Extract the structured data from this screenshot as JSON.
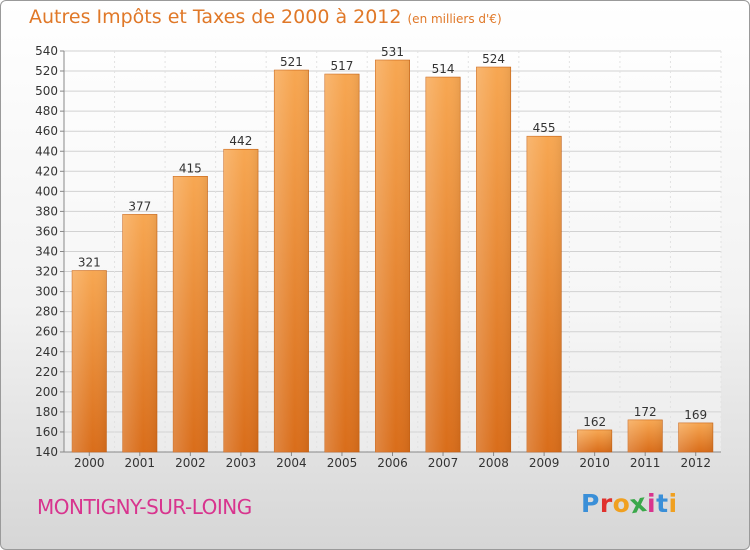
{
  "chart_data": {
    "type": "bar",
    "title": "Autres Impôts et Taxes de 2000 à 2012",
    "subtitle": "(en milliers d'€)",
    "categories": [
      "2000",
      "2001",
      "2002",
      "2003",
      "2004",
      "2005",
      "2006",
      "2007",
      "2008",
      "2009",
      "2010",
      "2011",
      "2012"
    ],
    "values": [
      321,
      377,
      415,
      442,
      521,
      517,
      531,
      514,
      524,
      455,
      162,
      172,
      169
    ],
    "ylim": [
      140,
      540
    ],
    "yticks": [
      140,
      160,
      180,
      200,
      220,
      240,
      260,
      280,
      300,
      320,
      340,
      360,
      380,
      400,
      420,
      440,
      460,
      480,
      500,
      520,
      540
    ],
    "grid": true,
    "bar_color": "#f0902e",
    "xlabel": "",
    "ylabel": ""
  },
  "location": "MONTIGNY-SUR-LOING",
  "logo": {
    "letters": [
      "P",
      "r",
      "o",
      "x",
      "i",
      "t",
      "i"
    ],
    "colors": [
      "#3a8fd8",
      "#e0302c",
      "#f0a020",
      "#3aa84a",
      "#d8348e",
      "#3a8fd8",
      "#f0a020"
    ]
  },
  "colors": {
    "title": "#e07828",
    "city": "#d8348e"
  }
}
